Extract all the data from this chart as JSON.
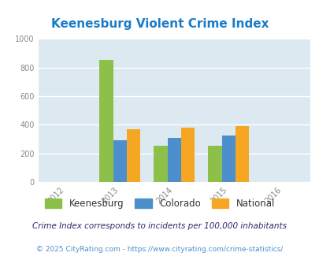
{
  "title": "Keenesburg Violent Crime Index",
  "title_color": "#1a7cc9",
  "years": [
    2012,
    2013,
    2014,
    2015,
    2016
  ],
  "bar_years": [
    2013,
    2014,
    2015
  ],
  "keenesburg": [
    855,
    252,
    252
  ],
  "colorado": [
    292,
    310,
    325
  ],
  "national": [
    370,
    380,
    390
  ],
  "keenesburg_color": "#8dc04a",
  "colorado_color": "#4d8fcc",
  "national_color": "#f5a623",
  "ylim": [
    0,
    1000
  ],
  "yticks": [
    0,
    200,
    400,
    600,
    800,
    1000
  ],
  "plot_bg_color": "#dce9f0",
  "grid_color": "#ffffff",
  "legend_labels": [
    "Keenesburg",
    "Colorado",
    "National"
  ],
  "footnote1": "Crime Index corresponds to incidents per 100,000 inhabitants",
  "footnote2": "© 2025 CityRating.com - https://www.cityrating.com/crime-statistics/",
  "footnote1_color": "#2a2a6a",
  "footnote2_color": "#4d8fcc",
  "bar_width": 0.25
}
